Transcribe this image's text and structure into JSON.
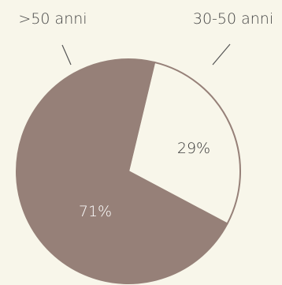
{
  "chart_data": {
    "type": "pie",
    "series": [
      {
        "name": "30-50 anni",
        "value": 29,
        "label": "29%"
      },
      {
        "name": ">50 anni",
        "value": 71,
        "label": "71%"
      }
    ]
  },
  "colors": {
    "background": "#f8f6ea",
    "slice_30_50": "#f8f6ea",
    "slice_over_50": "#968078",
    "outline": "#968078",
    "label_on_light": "#3c3c3c",
    "label_on_dark": "#ffffff",
    "category_text": "#444444",
    "leader_line": "#555555"
  }
}
